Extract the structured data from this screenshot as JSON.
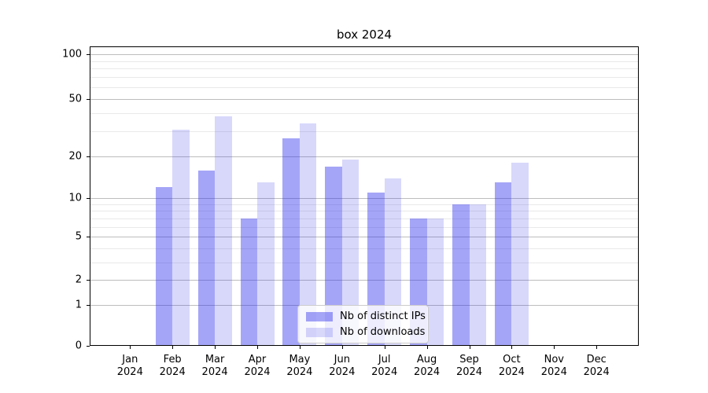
{
  "chart_data": {
    "type": "bar",
    "title": "box 2024",
    "x_year": "2024",
    "categories": [
      "Jan",
      "Feb",
      "Mar",
      "Apr",
      "May",
      "Jun",
      "Jul",
      "Aug",
      "Sep",
      "Oct",
      "Nov",
      "Dec"
    ],
    "series": [
      {
        "name": "Nb of distinct IPs",
        "color": "rgba(40,40,235,0.42)",
        "values": [
          0,
          12,
          16,
          7,
          27,
          17,
          11,
          7,
          9,
          13,
          0,
          0
        ]
      },
      {
        "name": "Nb of downloads",
        "color": "rgba(40,40,235,0.18)",
        "values": [
          0,
          31,
          38,
          13,
          34,
          19,
          14,
          7,
          9,
          18,
          0,
          0
        ]
      }
    ],
    "y_axis": {
      "scale": "quasi-log",
      "ticks": [
        0,
        1,
        2,
        5,
        10,
        20,
        50,
        100
      ],
      "minor_ticks": [
        3,
        4,
        6,
        7,
        8,
        9,
        30,
        40,
        60,
        70,
        80,
        90
      ],
      "range_top": 115
    },
    "legend": {
      "position": "lower center"
    },
    "grid": true
  }
}
